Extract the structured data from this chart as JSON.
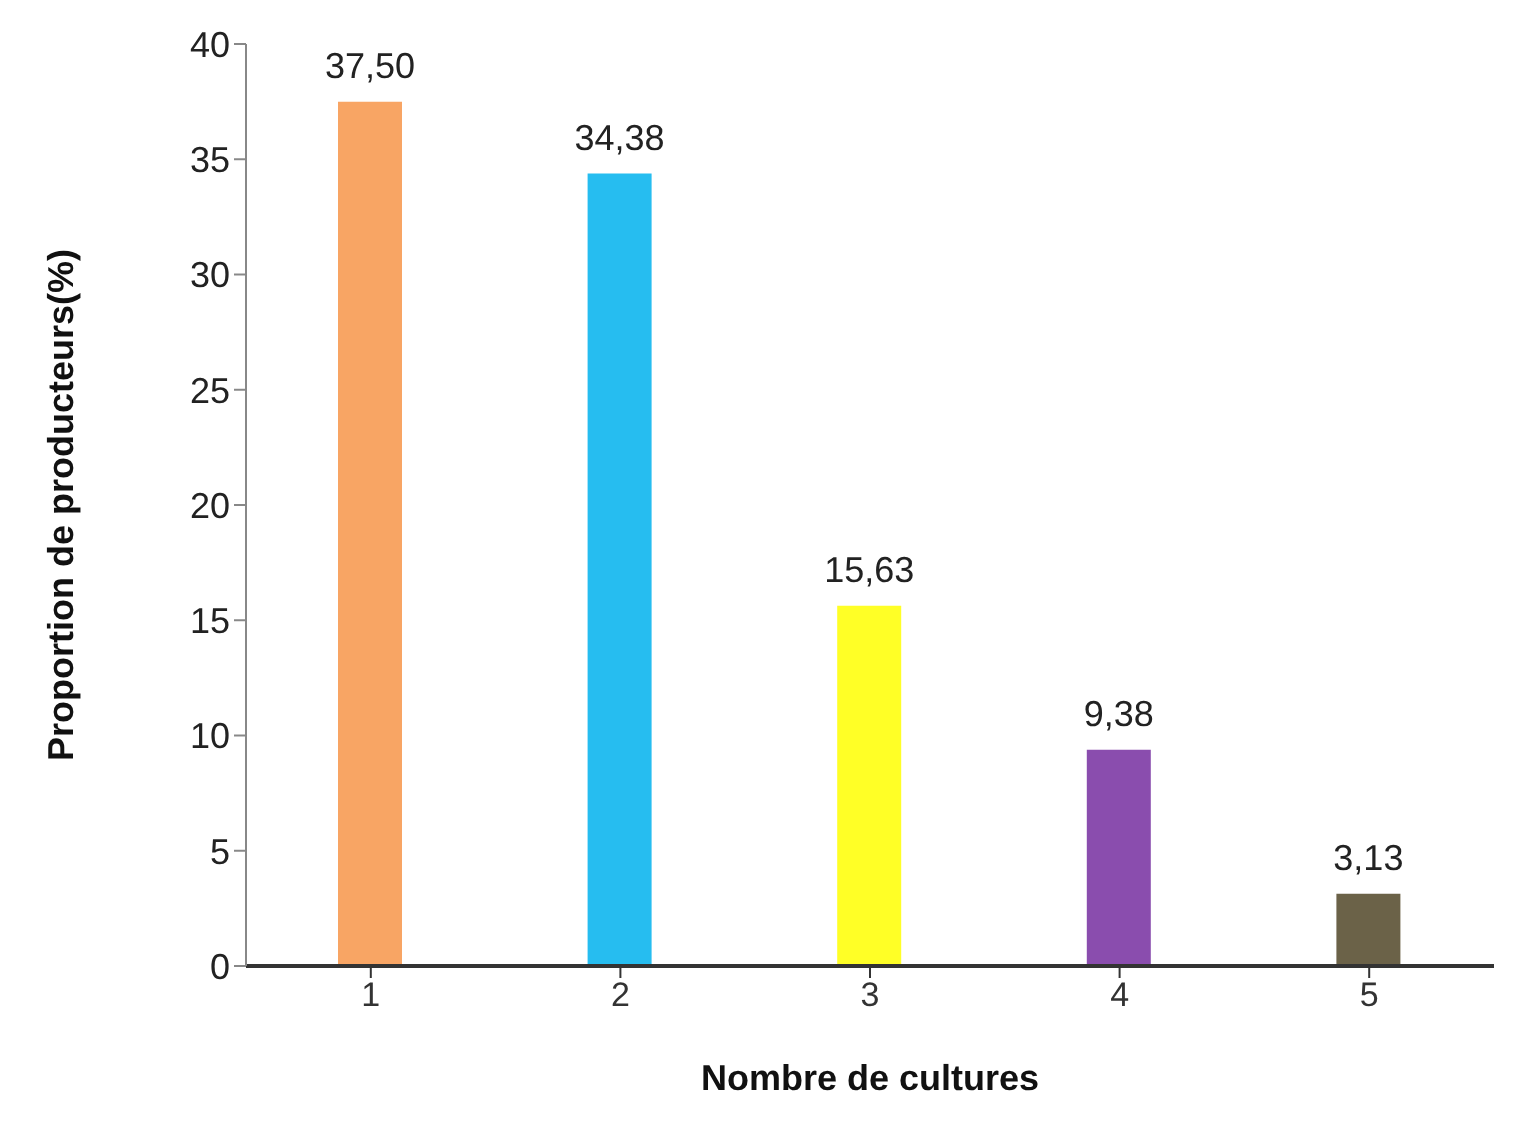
{
  "chart_data": {
    "type": "bar",
    "xlabel": "Nombre de  cultures",
    "ylabel": "Proportion de producteurs(%)",
    "categories": [
      "1",
      "2",
      "3",
      "4",
      "5"
    ],
    "values": [
      37.5,
      34.38,
      15.63,
      9.38,
      3.13
    ],
    "colors": [
      "#f8a564",
      "#26bdf0",
      "#ffff26",
      "#8a4dae",
      "#6b6248"
    ],
    "value_labels": [
      "37,50",
      "34,38",
      "15,63",
      "9,38",
      "3,13"
    ],
    "ylim": [
      0,
      40
    ],
    "yticks": [
      0,
      5,
      10,
      15,
      20,
      25,
      30,
      35,
      40
    ],
    "grid": false,
    "legend": false
  }
}
